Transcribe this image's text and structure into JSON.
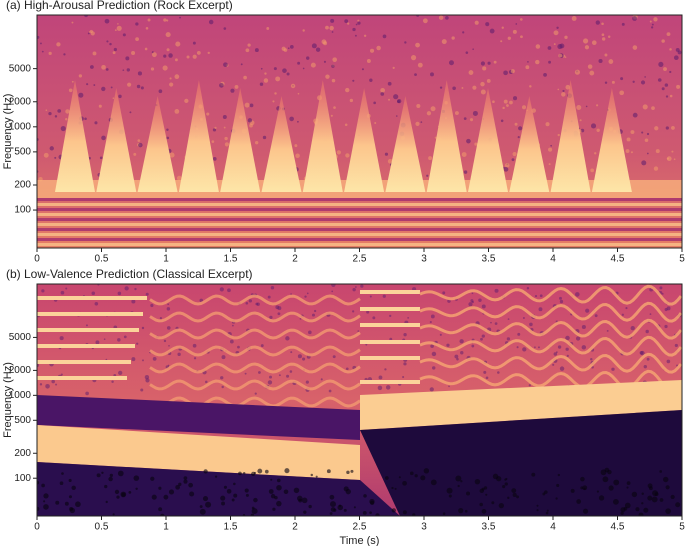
{
  "chart_data": [
    {
      "type": "spectrogram",
      "title": "(a) High-Arousal Prediction (Rock Excerpt)",
      "ylabel": "Frequency (Hz)",
      "xlim": [
        0,
        5
      ],
      "xticks": [
        0,
        0.5,
        1,
        1.5,
        2,
        2.5,
        3,
        3.5,
        4,
        4.5,
        5
      ],
      "ylim": [
        35,
        22050
      ],
      "yticks": [
        100,
        200,
        500,
        1000,
        2000,
        5000
      ],
      "log_scale": true
    },
    {
      "type": "spectrogram",
      "title": "(b) Low-Valence Prediction (Classical Excerpt)",
      "ylabel": "Frequency (Hz)",
      "xlabel": "Time (s)",
      "xlim": [
        0,
        5
      ],
      "xticks": [
        0,
        0.5,
        1,
        1.5,
        2,
        2.5,
        3,
        3.5,
        4,
        4.5,
        5
      ],
      "ylim": [
        35,
        22050
      ],
      "yticks": [
        100,
        200,
        500,
        1000,
        2000,
        5000
      ],
      "log_scale": true
    }
  ]
}
